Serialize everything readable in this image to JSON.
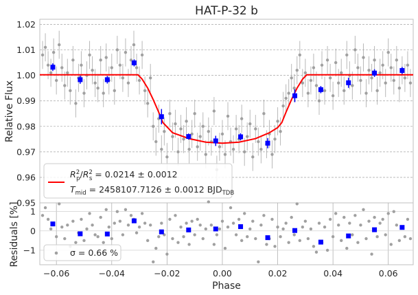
{
  "chart_data": {
    "type": "scatter",
    "title": "HAT-P-32 b",
    "xlabel": "Phase",
    "xlim": [
      -0.066,
      0.069
    ],
    "xticks": [
      -0.06,
      -0.04,
      -0.02,
      0.0,
      0.02,
      0.04,
      0.06
    ],
    "xtick_labels": [
      "−0.06",
      "−0.04",
      "−0.02",
      "0.00",
      "0.02",
      "0.04",
      "0.06"
    ],
    "grid": true,
    "top_panel": {
      "ylabel": "Relative Flux",
      "ylim": [
        0.95,
        1.022
      ],
      "yticks": [
        0.95,
        0.96,
        0.97,
        0.98,
        0.99,
        1.0,
        1.01,
        1.02
      ],
      "ytick_labels": [
        "0.95",
        "0.96",
        "0.97",
        "0.98",
        "0.99",
        "1.00",
        "1.01",
        "1.02"
      ],
      "legend_placement": "lower-left",
      "legend_line1": "R_p^2/R_s^2 = 0.0214 ± 0.0012",
      "legend_line2": "T_mid = 2458107.7126 ± 0.0012 BJD_TDB",
      "model_color": "#ff0000",
      "binned_color": "#0000ff",
      "raw_color": "#a0a0a0",
      "binned": {
        "x": [
          -0.0613,
          -0.0514,
          -0.0416,
          -0.0319,
          -0.022,
          -0.0122,
          -0.0024,
          0.0066,
          0.0164,
          0.0262,
          0.0356,
          0.0456,
          0.055,
          0.065
        ],
        "y": [
          1.0032,
          0.9983,
          0.9983,
          1.0049,
          0.9838,
          0.976,
          0.9743,
          0.9759,
          0.9734,
          0.992,
          0.9944,
          0.9971,
          1.0009,
          1.0019
        ],
        "yerr": [
          0.0015,
          0.0016,
          0.0015,
          0.0014,
          0.003,
          0.0012,
          0.002,
          0.0014,
          0.002,
          0.0025,
          0.0014,
          0.002,
          0.0015,
          0.0014
        ]
      },
      "model": {
        "x": [
          -0.066,
          -0.0305,
          -0.029,
          -0.027,
          -0.025,
          -0.023,
          -0.0215,
          -0.018,
          -0.012,
          -0.006,
          0.0,
          0.006,
          0.012,
          0.017,
          0.02,
          0.0215,
          0.023,
          0.025,
          0.027,
          0.029,
          0.0305,
          0.069
        ],
        "y": [
          1.0002,
          1.0002,
          0.9985,
          0.995,
          0.9905,
          0.9855,
          0.9815,
          0.9775,
          0.9752,
          0.9738,
          0.9734,
          0.9738,
          0.9752,
          0.9775,
          0.9795,
          0.9815,
          0.9855,
          0.9905,
          0.995,
          0.9985,
          1.0002,
          1.0002
        ]
      },
      "raw": {
        "x": [
          -0.065,
          -0.064,
          -0.063,
          -0.062,
          -0.061,
          -0.06,
          -0.059,
          -0.058,
          -0.057,
          -0.056,
          -0.055,
          -0.054,
          -0.053,
          -0.052,
          -0.051,
          -0.05,
          -0.049,
          -0.048,
          -0.047,
          -0.046,
          -0.045,
          -0.044,
          -0.043,
          -0.042,
          -0.041,
          -0.04,
          -0.039,
          -0.038,
          -0.037,
          -0.036,
          -0.035,
          -0.034,
          -0.033,
          -0.032,
          -0.031,
          -0.03,
          -0.029,
          -0.028,
          -0.027,
          -0.026,
          -0.025,
          -0.024,
          -0.023,
          -0.022,
          -0.021,
          -0.02,
          -0.019,
          -0.018,
          -0.017,
          -0.016,
          -0.015,
          -0.014,
          -0.013,
          -0.012,
          -0.011,
          -0.01,
          -0.009,
          -0.008,
          -0.007,
          -0.006,
          -0.005,
          -0.004,
          -0.003,
          -0.002,
          -0.001,
          0.0,
          0.001,
          0.002,
          0.003,
          0.004,
          0.005,
          0.006,
          0.007,
          0.008,
          0.009,
          0.01,
          0.011,
          0.012,
          0.013,
          0.014,
          0.015,
          0.016,
          0.017,
          0.018,
          0.019,
          0.02,
          0.021,
          0.022,
          0.023,
          0.024,
          0.025,
          0.026,
          0.027,
          0.028,
          0.029,
          0.03,
          0.031,
          0.032,
          0.033,
          0.034,
          0.035,
          0.036,
          0.037,
          0.038,
          0.039,
          0.04,
          0.041,
          0.042,
          0.043,
          0.044,
          0.045,
          0.046,
          0.047,
          0.048,
          0.049,
          0.05,
          0.051,
          0.052,
          0.053,
          0.054,
          0.055,
          0.056,
          0.057,
          0.058,
          0.059,
          0.06,
          0.061,
          0.062,
          0.063,
          0.064,
          0.065,
          0.066,
          0.067,
          0.068
        ],
        "y": [
          1.008,
          1.011,
          1.004,
          1.001,
          1.009,
          0.998,
          1.012,
          1.003,
          0.996,
          1.001,
          0.994,
          1.006,
          0.989,
          0.999,
          1.004,
          0.993,
          1.0,
          1.008,
          1.002,
          0.997,
          0.995,
          1.006,
          0.993,
          1.007,
          0.998,
          1.003,
          0.994,
          1.01,
          1.004,
          0.999,
          1.009,
          0.997,
          1.006,
          1.012,
          1.003,
          0.998,
          1.008,
          0.994,
          0.989,
          0.999,
          0.98,
          0.974,
          0.983,
          0.971,
          0.978,
          0.968,
          0.985,
          0.976,
          0.981,
          0.97,
          0.979,
          0.975,
          0.982,
          0.971,
          0.977,
          0.985,
          0.972,
          0.976,
          0.98,
          0.969,
          0.978,
          0.974,
          0.986,
          0.963,
          0.972,
          0.977,
          0.969,
          0.984,
          0.974,
          0.971,
          0.979,
          0.975,
          0.983,
          0.97,
          0.976,
          0.981,
          0.968,
          0.979,
          0.974,
          0.971,
          0.985,
          0.973,
          0.977,
          0.969,
          0.975,
          0.982,
          0.978,
          0.988,
          0.991,
          0.993,
          0.999,
          0.995,
          1.002,
          1.008,
          0.997,
          1.001,
          0.993,
          0.998,
          1.003,
          0.996,
          0.99,
          1.004,
          0.994,
          1.006,
          0.999,
          0.992,
          1.005,
          0.997,
          1.001,
          0.994,
          1.008,
          1.0,
          0.996,
          1.01,
          1.003,
          0.998,
          1.007,
          0.993,
          1.002,
          0.999,
          1.006,
          0.994,
          1.001,
          1.004,
          0.997,
          1.009,
          1.003,
          0.998,
          1.006,
          0.995,
          1.002,
          0.999,
          1.004,
          0.997
        ],
        "yerr": 0.0055
      }
    },
    "bottom_panel": {
      "ylabel": "Residuals [%]",
      "ylim": [
        -1.75,
        1.45
      ],
      "yticks": [
        -1,
        0,
        1
      ],
      "ytick_labels": [
        "−1",
        "0",
        "1"
      ],
      "legend_placement": "lower-left",
      "legend_label": "σ = 0.66 %",
      "binned": {
        "x": [
          -0.0613,
          -0.0514,
          -0.0416,
          -0.0319,
          -0.022,
          -0.0122,
          -0.0024,
          0.0066,
          0.0164,
          0.0262,
          0.0356,
          0.0456,
          0.055,
          0.065
        ],
        "y": [
          0.36,
          -0.15,
          -0.16,
          0.52,
          -0.05,
          0.05,
          0.1,
          0.22,
          -0.35,
          0.02,
          -0.58,
          -0.26,
          0.06,
          0.18
        ]
      },
      "raw": {
        "x": [
          -0.065,
          -0.064,
          -0.063,
          -0.062,
          -0.061,
          -0.06,
          -0.059,
          -0.058,
          -0.057,
          -0.056,
          -0.055,
          -0.054,
          -0.053,
          -0.052,
          -0.051,
          -0.05,
          -0.049,
          -0.048,
          -0.047,
          -0.046,
          -0.045,
          -0.044,
          -0.043,
          -0.042,
          -0.041,
          -0.04,
          -0.039,
          -0.038,
          -0.037,
          -0.036,
          -0.035,
          -0.034,
          -0.033,
          -0.032,
          -0.031,
          -0.03,
          -0.029,
          -0.028,
          -0.027,
          -0.026,
          -0.025,
          -0.024,
          -0.023,
          -0.022,
          -0.021,
          -0.02,
          -0.019,
          -0.018,
          -0.017,
          -0.016,
          -0.015,
          -0.014,
          -0.013,
          -0.012,
          -0.011,
          -0.01,
          -0.009,
          -0.008,
          -0.007,
          -0.006,
          -0.005,
          -0.004,
          -0.003,
          -0.002,
          -0.001,
          0.0,
          0.001,
          0.002,
          0.003,
          0.004,
          0.005,
          0.006,
          0.007,
          0.008,
          0.009,
          0.01,
          0.011,
          0.012,
          0.013,
          0.014,
          0.015,
          0.016,
          0.017,
          0.018,
          0.019,
          0.02,
          0.021,
          0.022,
          0.023,
          0.024,
          0.025,
          0.026,
          0.027,
          0.028,
          0.029,
          0.03,
          0.031,
          0.032,
          0.033,
          0.034,
          0.035,
          0.036,
          0.037,
          0.038,
          0.039,
          0.04,
          0.041,
          0.042,
          0.043,
          0.044,
          0.045,
          0.046,
          0.047,
          0.048,
          0.049,
          0.05,
          0.051,
          0.052,
          0.053,
          0.054,
          0.055,
          0.056,
          0.057,
          0.058,
          0.059,
          0.06,
          0.061,
          0.062,
          0.063,
          0.064,
          0.065,
          0.066,
          0.067,
          0.068
        ],
        "y": [
          0.8,
          1.2,
          0.6,
          0.1,
          0.4,
          -0.3,
          1.4,
          0.2,
          -0.4,
          0.3,
          -0.8,
          0.5,
          -0.6,
          -0.1,
          0.6,
          -0.5,
          0.1,
          0.9,
          0.3,
          -0.2,
          -0.3,
          0.7,
          -0.6,
          1.1,
          0.2,
          -0.4,
          0.4,
          1.0,
          0.5,
          -0.2,
          1.1,
          0.3,
          0.8,
          0.6,
          -0.1,
          0.2,
          0.9,
          0.4,
          -0.5,
          0.3,
          -1.6,
          -0.9,
          -0.3,
          0.4,
          -0.2,
          -1.2,
          0.6,
          -0.4,
          0.8,
          -0.6,
          0.2,
          -0.3,
          0.4,
          -0.7,
          0.5,
          -0.2,
          0.6,
          0.3,
          -0.4,
          0.1,
          1.5,
          0.3,
          -0.7,
          -0.2,
          0.1,
          0.5,
          -0.9,
          0.2,
          1.2,
          0.4,
          -0.2,
          0.6,
          -0.5,
          0.9,
          -0.3,
          0.1,
          0.5,
          -0.4,
          -1.6,
          0.3,
          0.8,
          -0.7,
          -0.4,
          0.6,
          -0.8,
          0.2,
          -0.3,
          0.1,
          0.4,
          -0.6,
          0.7,
          -0.2,
          1.4,
          -0.5,
          0.2,
          0.5,
          -0.4,
          0.1,
          -0.8,
          -1.1,
          0.4,
          -0.6,
          0.2,
          -1.0,
          0.6,
          -0.3,
          0.9,
          0.3,
          -0.5,
          0.7,
          -0.9,
          0.4,
          -0.2,
          0.8,
          -0.6,
          0.3,
          1.1,
          -0.4,
          0.5,
          -1.2,
          0.7,
          -0.3,
          0.4,
          0.6,
          -0.2,
          0.9,
          -0.7,
          1.0,
          0.3,
          -0.5,
          0.2,
          -0.3,
          0.6,
          -0.4
        ]
      }
    }
  }
}
